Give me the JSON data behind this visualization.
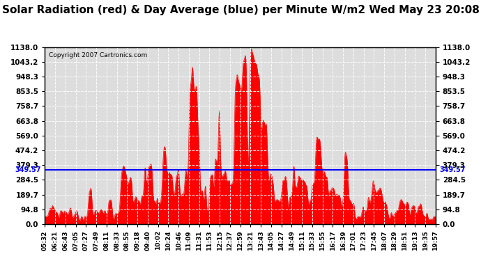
{
  "title": "Solar Radiation (red) & Day Average (blue) per Minute W/m2 Wed May 23 20:08",
  "copyright": "Copyright 2007 Cartronics.com",
  "ymax": 1138.0,
  "ymin": 0.0,
  "yticks": [
    0.0,
    94.8,
    189.7,
    284.5,
    379.3,
    474.2,
    569.0,
    663.8,
    758.7,
    853.5,
    948.3,
    1043.2,
    1138.0
  ],
  "day_average": 349.57,
  "avg_label": "349.57",
  "background_color": "#ffffff",
  "fill_color": "#ff0000",
  "avg_line_color": "#0000ff",
  "grid_color": "#ffffff",
  "title_fontsize": 11,
  "xtick_labels": [
    "05:32",
    "06:21",
    "06:43",
    "07:05",
    "07:27",
    "07:49",
    "08:11",
    "08:33",
    "08:55",
    "09:18",
    "09:40",
    "10:02",
    "10:24",
    "10:46",
    "11:09",
    "11:31",
    "11:53",
    "12:15",
    "12:37",
    "12:59",
    "13:21",
    "13:43",
    "14:05",
    "14:27",
    "14:49",
    "15:11",
    "15:33",
    "15:55",
    "16:17",
    "16:39",
    "17:01",
    "17:23",
    "17:45",
    "18:07",
    "18:29",
    "18:51",
    "19:13",
    "19:35",
    "19:57"
  ]
}
